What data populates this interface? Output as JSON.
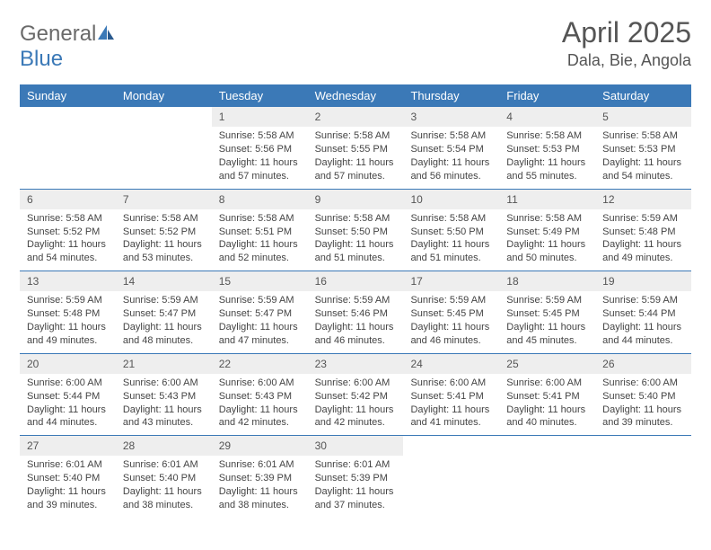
{
  "brand": {
    "name_part1": "General",
    "name_part2": "Blue"
  },
  "header": {
    "month_title": "April 2025",
    "location": "Dala, Bie, Angola"
  },
  "colors": {
    "header_bar": "#3b79b7",
    "week_border": "#3b79b7",
    "daynum_bg": "#eeeeee",
    "text": "#444444",
    "title_text": "#555555",
    "logo_gray": "#6a6a6a"
  },
  "day_names": [
    "Sunday",
    "Monday",
    "Tuesday",
    "Wednesday",
    "Thursday",
    "Friday",
    "Saturday"
  ],
  "labels": {
    "sunrise": "Sunrise:",
    "sunset": "Sunset:",
    "daylight": "Daylight:"
  },
  "calendar": {
    "first_weekday_index": 2,
    "days": [
      {
        "n": 1,
        "sunrise": "5:58 AM",
        "sunset": "5:56 PM",
        "daylight": "11 hours and 57 minutes."
      },
      {
        "n": 2,
        "sunrise": "5:58 AM",
        "sunset": "5:55 PM",
        "daylight": "11 hours and 57 minutes."
      },
      {
        "n": 3,
        "sunrise": "5:58 AM",
        "sunset": "5:54 PM",
        "daylight": "11 hours and 56 minutes."
      },
      {
        "n": 4,
        "sunrise": "5:58 AM",
        "sunset": "5:53 PM",
        "daylight": "11 hours and 55 minutes."
      },
      {
        "n": 5,
        "sunrise": "5:58 AM",
        "sunset": "5:53 PM",
        "daylight": "11 hours and 54 minutes."
      },
      {
        "n": 6,
        "sunrise": "5:58 AM",
        "sunset": "5:52 PM",
        "daylight": "11 hours and 54 minutes."
      },
      {
        "n": 7,
        "sunrise": "5:58 AM",
        "sunset": "5:52 PM",
        "daylight": "11 hours and 53 minutes."
      },
      {
        "n": 8,
        "sunrise": "5:58 AM",
        "sunset": "5:51 PM",
        "daylight": "11 hours and 52 minutes."
      },
      {
        "n": 9,
        "sunrise": "5:58 AM",
        "sunset": "5:50 PM",
        "daylight": "11 hours and 51 minutes."
      },
      {
        "n": 10,
        "sunrise": "5:58 AM",
        "sunset": "5:50 PM",
        "daylight": "11 hours and 51 minutes."
      },
      {
        "n": 11,
        "sunrise": "5:58 AM",
        "sunset": "5:49 PM",
        "daylight": "11 hours and 50 minutes."
      },
      {
        "n": 12,
        "sunrise": "5:59 AM",
        "sunset": "5:48 PM",
        "daylight": "11 hours and 49 minutes."
      },
      {
        "n": 13,
        "sunrise": "5:59 AM",
        "sunset": "5:48 PM",
        "daylight": "11 hours and 49 minutes."
      },
      {
        "n": 14,
        "sunrise": "5:59 AM",
        "sunset": "5:47 PM",
        "daylight": "11 hours and 48 minutes."
      },
      {
        "n": 15,
        "sunrise": "5:59 AM",
        "sunset": "5:47 PM",
        "daylight": "11 hours and 47 minutes."
      },
      {
        "n": 16,
        "sunrise": "5:59 AM",
        "sunset": "5:46 PM",
        "daylight": "11 hours and 46 minutes."
      },
      {
        "n": 17,
        "sunrise": "5:59 AM",
        "sunset": "5:45 PM",
        "daylight": "11 hours and 46 minutes."
      },
      {
        "n": 18,
        "sunrise": "5:59 AM",
        "sunset": "5:45 PM",
        "daylight": "11 hours and 45 minutes."
      },
      {
        "n": 19,
        "sunrise": "5:59 AM",
        "sunset": "5:44 PM",
        "daylight": "11 hours and 44 minutes."
      },
      {
        "n": 20,
        "sunrise": "6:00 AM",
        "sunset": "5:44 PM",
        "daylight": "11 hours and 44 minutes."
      },
      {
        "n": 21,
        "sunrise": "6:00 AM",
        "sunset": "5:43 PM",
        "daylight": "11 hours and 43 minutes."
      },
      {
        "n": 22,
        "sunrise": "6:00 AM",
        "sunset": "5:43 PM",
        "daylight": "11 hours and 42 minutes."
      },
      {
        "n": 23,
        "sunrise": "6:00 AM",
        "sunset": "5:42 PM",
        "daylight": "11 hours and 42 minutes."
      },
      {
        "n": 24,
        "sunrise": "6:00 AM",
        "sunset": "5:41 PM",
        "daylight": "11 hours and 41 minutes."
      },
      {
        "n": 25,
        "sunrise": "6:00 AM",
        "sunset": "5:41 PM",
        "daylight": "11 hours and 40 minutes."
      },
      {
        "n": 26,
        "sunrise": "6:00 AM",
        "sunset": "5:40 PM",
        "daylight": "11 hours and 39 minutes."
      },
      {
        "n": 27,
        "sunrise": "6:01 AM",
        "sunset": "5:40 PM",
        "daylight": "11 hours and 39 minutes."
      },
      {
        "n": 28,
        "sunrise": "6:01 AM",
        "sunset": "5:40 PM",
        "daylight": "11 hours and 38 minutes."
      },
      {
        "n": 29,
        "sunrise": "6:01 AM",
        "sunset": "5:39 PM",
        "daylight": "11 hours and 38 minutes."
      },
      {
        "n": 30,
        "sunrise": "6:01 AM",
        "sunset": "5:39 PM",
        "daylight": "11 hours and 37 minutes."
      }
    ]
  }
}
